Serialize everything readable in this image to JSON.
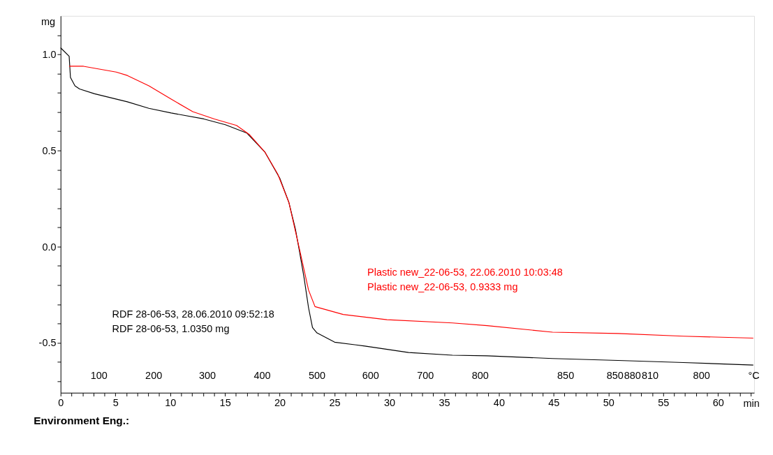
{
  "chart_data": {
    "type": "line",
    "xlabel": "min",
    "ylabel": "mg",
    "x2label": "°C",
    "xlim": [
      0,
      63.3
    ],
    "ylim": [
      -0.76,
      1.2
    ],
    "xticks": [
      0,
      {
        "value": 1,
        "label": null
      },
      {
        "value": 2,
        "label": null
      },
      {
        "value": 3,
        "label": null
      },
      {
        "value": 4,
        "label": null
      },
      5,
      {
        "value": 6,
        "label": null
      },
      {
        "value": 7,
        "label": null
      },
      {
        "value": 8,
        "label": null
      },
      {
        "value": 9,
        "label": null
      },
      10,
      {
        "value": 11,
        "label": null
      },
      {
        "value": 12,
        "label": null
      },
      {
        "value": 13,
        "label": null
      },
      {
        "value": 14,
        "label": null
      },
      15,
      {
        "value": 16,
        "label": null
      },
      {
        "value": 17,
        "label": null
      },
      {
        "value": 18,
        "label": null
      },
      {
        "value": 19,
        "label": null
      },
      20,
      {
        "value": 21,
        "label": null
      },
      {
        "value": 22,
        "label": null
      },
      {
        "value": 23,
        "label": null
      },
      {
        "value": 24,
        "label": null
      },
      25,
      {
        "value": 26,
        "label": null
      },
      {
        "value": 27,
        "label": null
      },
      {
        "value": 28,
        "label": null
      },
      {
        "value": 29,
        "label": null
      },
      30,
      {
        "value": 31,
        "label": null
      },
      {
        "value": 32,
        "label": null
      },
      {
        "value": 33,
        "label": null
      },
      {
        "value": 34,
        "label": null
      },
      35,
      {
        "value": 36,
        "label": null
      },
      {
        "value": 37,
        "label": null
      },
      {
        "value": 38,
        "label": null
      },
      {
        "value": 39,
        "label": null
      },
      40,
      {
        "value": 41,
        "label": null
      },
      {
        "value": 42,
        "label": null
      },
      {
        "value": 43,
        "label": null
      },
      {
        "value": 44,
        "label": null
      },
      45,
      {
        "value": 46,
        "label": null
      },
      {
        "value": 47,
        "label": null
      },
      {
        "value": 48,
        "label": null
      },
      {
        "value": 49,
        "label": null
      },
      50,
      {
        "value": 51,
        "label": null
      },
      {
        "value": 52,
        "label": null
      },
      {
        "value": 53,
        "label": null
      },
      {
        "value": 54,
        "label": null
      },
      55,
      {
        "value": 56,
        "label": null
      },
      {
        "value": 57,
        "label": null
      },
      {
        "value": 58,
        "label": null
      },
      {
        "value": 59,
        "label": null
      },
      60,
      {
        "value": 61,
        "label": null
      },
      {
        "value": 62,
        "label": null
      },
      {
        "value": 63,
        "label": null
      }
    ],
    "yticks": [
      {
        "value": -0.7,
        "label": null
      },
      {
        "value": -0.6,
        "label": null
      },
      -0.5,
      {
        "value": -0.4,
        "label": null
      },
      {
        "value": -0.3,
        "label": null
      },
      {
        "value": -0.2,
        "label": null
      },
      {
        "value": -0.1,
        "label": null
      },
      {
        "value": 0,
        "label": "0.0"
      },
      {
        "value": 0.1,
        "label": null
      },
      {
        "value": 0.2,
        "label": null
      },
      {
        "value": 0.3,
        "label": null
      },
      {
        "value": 0.4,
        "label": null
      },
      0.5,
      {
        "value": 0.6,
        "label": null
      },
      {
        "value": 0.7,
        "label": null
      },
      {
        "value": 0.8,
        "label": null
      },
      {
        "value": 0.9,
        "label": null
      },
      {
        "value": 1,
        "label": "1.0"
      },
      {
        "value": 1.1,
        "label": null
      }
    ],
    "grid": false,
    "legend": false,
    "marker": "none",
    "line_style": "solid",
    "series": [
      {
        "name": "RDF 28-06-53, 28.06.2010 09:52:18\nRDF 28-06-53, 1.0350 mg",
        "color": "#000000",
        "x": [
          0,
          0.78,
          0.9,
          1.31,
          1.73,
          3.1,
          6.09,
          8.06,
          10.09,
          13.07,
          15.04,
          17.01,
          18.63,
          20.0,
          20.84,
          21.43,
          21.79,
          22.21,
          22.63,
          22.99,
          23.4,
          25.01,
          27.76,
          31.76,
          35.76,
          38.93,
          44.9,
          50.87,
          56.84,
          63.22
        ],
        "values": [
          1.034,
          0.99,
          0.88,
          0.836,
          0.82,
          0.795,
          0.753,
          0.719,
          0.695,
          0.664,
          0.634,
          0.59,
          0.493,
          0.356,
          0.229,
          0.092,
          -0.021,
          -0.158,
          -0.318,
          -0.421,
          -0.449,
          -0.497,
          -0.517,
          -0.551,
          -0.565,
          -0.568,
          -0.582,
          -0.592,
          -0.603,
          -0.616
        ]
      },
      {
        "name": "Plastic new_22-06-53, 22.06.2010 10:03:48\nPlastic new_22-06-53, 0.9333 mg",
        "color": "#ff0000",
        "x": [
          0.78,
          2.09,
          5.07,
          6.09,
          8.06,
          10.09,
          12.06,
          14.03,
          16.06,
          17.25,
          18.63,
          19.82,
          20.84,
          21.79,
          22.63,
          23.22,
          25.79,
          29.79,
          35.76,
          38.93,
          44.9,
          50.87,
          56.84,
          63.22
        ],
        "values": [
          0.938,
          0.938,
          0.908,
          0.89,
          0.836,
          0.767,
          0.702,
          0.664,
          0.63,
          0.582,
          0.493,
          0.377,
          0.229,
          -0.01,
          -0.226,
          -0.312,
          -0.353,
          -0.38,
          -0.397,
          -0.411,
          -0.445,
          -0.452,
          -0.466,
          -0.476
        ]
      }
    ],
    "annotations": [
      "Environment Eng.:",
      "100",
      "200",
      "300",
      "400",
      "500",
      "600",
      "700",
      "800",
      "850",
      "850",
      "880",
      "810",
      "800"
    ]
  }
}
